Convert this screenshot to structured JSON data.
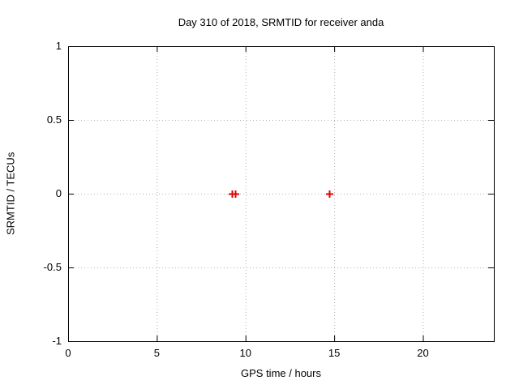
{
  "chart_data": {
    "type": "scatter",
    "title": "Day 310 of 2018, SRMTID for receiver anda",
    "xlabel": "GPS time / hours",
    "ylabel": "SRMTID / TECUs",
    "xlim": [
      0,
      24
    ],
    "ylim": [
      -1,
      1
    ],
    "grid": true,
    "legend": "none",
    "xticks": [
      {
        "v": 0,
        "label": "0"
      },
      {
        "v": 5,
        "label": "5"
      },
      {
        "v": 10,
        "label": "10"
      },
      {
        "v": 15,
        "label": "15"
      },
      {
        "v": 20,
        "label": "20"
      }
    ],
    "yticks": [
      {
        "v": 1,
        "label": "1"
      },
      {
        "v": 0.5,
        "label": "0.5"
      },
      {
        "v": 0,
        "label": "0"
      },
      {
        "v": -0.5,
        "label": "-0.5"
      },
      {
        "v": -1,
        "label": "-1"
      }
    ],
    "series": [
      {
        "marker": "plus",
        "color": "#e00000",
        "points": [
          [
            9.25,
            0
          ],
          [
            9.4,
            0
          ],
          [
            14.7,
            0
          ]
        ]
      }
    ]
  },
  "colors": {
    "background": "#ffffff",
    "axis": "#000000",
    "grid": "#b0b0b0",
    "marker": "#e00000",
    "text": "#000000"
  }
}
